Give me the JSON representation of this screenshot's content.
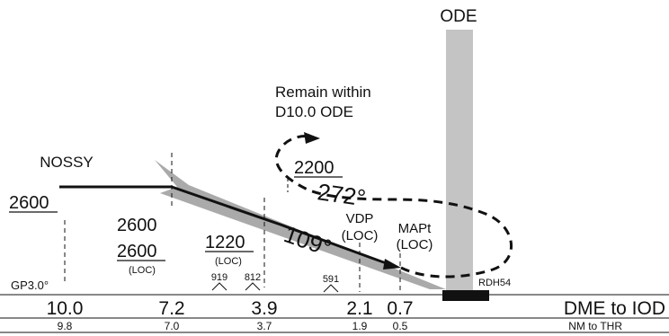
{
  "runway": {
    "label": "ODE"
  },
  "missed_approach": {
    "instruction_line1": "Remain within",
    "instruction_line2": "D10.0 ODE"
  },
  "fixes": {
    "iaf": "NOSSY",
    "vdp_name": "VDP",
    "vdp_sub": "(LOC)",
    "mapt_name": "MAPt",
    "mapt_sub": "(LOC)"
  },
  "altitudes": {
    "initial": "2600",
    "fix_top": "2600",
    "fix_bottom": "2600",
    "fix_loc": "(LOC)",
    "step": "1220",
    "step_loc": "(LOC)",
    "missed": "2200"
  },
  "courses": {
    "inbound": "109°",
    "outbound": "272°"
  },
  "obstacles": [
    "919",
    "812",
    "591"
  ],
  "glidepath": "GP3.0°",
  "rdh": "RDH54",
  "dme_row": {
    "values": [
      "10.0",
      "7.2",
      "3.9",
      "2.1",
      "0.7"
    ],
    "label": "DME to IOD"
  },
  "thr_row": {
    "values": [
      "9.8",
      "7.0",
      "3.7",
      "1.9",
      "0.5"
    ],
    "label": "NM to THR"
  }
}
